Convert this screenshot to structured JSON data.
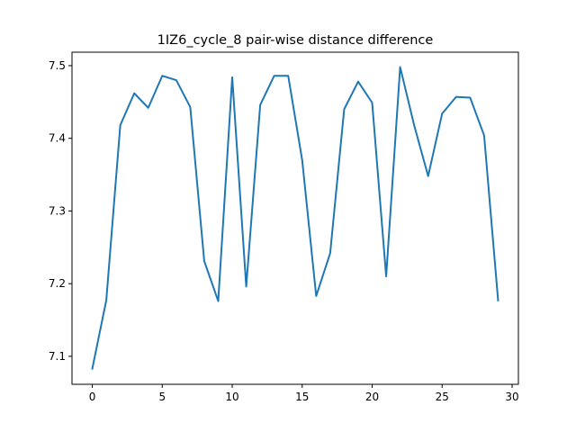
{
  "chart_data": {
    "type": "line",
    "title": "1IZ6_cycle_8 pair-wise distance difference",
    "xlabel": "",
    "ylabel": "",
    "xlim": [
      -1.45,
      30.45
    ],
    "ylim": [
      7.0615,
      7.5185
    ],
    "x_ticks": [
      0,
      5,
      10,
      15,
      20,
      25,
      30
    ],
    "y_ticks": [
      7.1,
      7.2,
      7.3,
      7.4,
      7.5
    ],
    "x_tick_labels": [
      "0",
      "5",
      "10",
      "15",
      "20",
      "25",
      "30"
    ],
    "y_tick_labels": [
      "7.1",
      "7.2",
      "7.3",
      "7.4",
      "7.5"
    ],
    "grid": false,
    "line_color": "#1f77b4",
    "series": [
      {
        "x": [
          0,
          1,
          2,
          3,
          4,
          5,
          6,
          7,
          8,
          9,
          10,
          11,
          12,
          13,
          14,
          15,
          16,
          17,
          18,
          19,
          20,
          21,
          22,
          23,
          24,
          25,
          26,
          27,
          28,
          29
        ],
        "values": [
          7.083,
          7.177,
          7.418,
          7.462,
          7.442,
          7.486,
          7.48,
          7.443,
          7.231,
          7.176,
          7.484,
          7.196,
          7.446,
          7.486,
          7.486,
          7.37,
          7.183,
          7.242,
          7.44,
          7.478,
          7.449,
          7.21,
          7.498,
          7.418,
          7.348,
          7.434,
          7.457,
          7.456,
          7.404,
          7.177
        ]
      }
    ]
  }
}
